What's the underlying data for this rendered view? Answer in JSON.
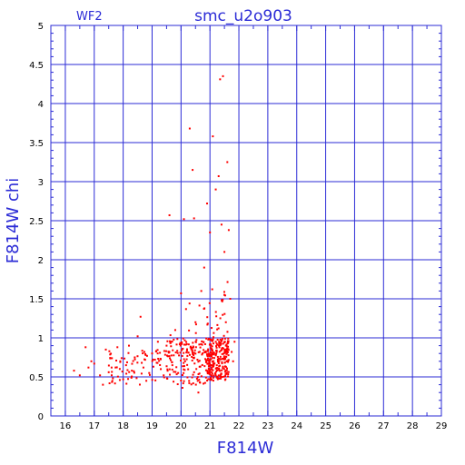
{
  "chart_data": {
    "type": "scatter",
    "title": "smc_u2o903",
    "chip_label": "WF2",
    "xlabel": "F814W",
    "ylabel": "F814W chi",
    "xlim": [
      15.5,
      29
    ],
    "ylim": [
      0,
      5
    ],
    "x_ticks": [
      16,
      17,
      18,
      19,
      20,
      21,
      22,
      23,
      24,
      25,
      26,
      27,
      28,
      29
    ],
    "y_ticks": [
      0,
      0.5,
      1,
      1.5,
      2,
      2.5,
      3,
      3.5,
      4,
      4.5,
      5
    ],
    "grid": true,
    "point_color": "#ff0000",
    "frame_color": "#2b2bd6",
    "series": [
      {
        "points": [
          [
            16.3,
            0.58
          ],
          [
            16.5,
            0.52
          ],
          [
            16.7,
            0.88
          ],
          [
            16.8,
            0.62
          ],
          [
            16.9,
            0.7
          ],
          [
            17.0,
            0.67
          ],
          [
            17.2,
            0.52
          ],
          [
            17.3,
            0.4
          ],
          [
            17.4,
            0.85
          ],
          [
            17.5,
            0.56
          ],
          [
            17.6,
            0.62
          ],
          [
            17.8,
            0.88
          ],
          [
            17.9,
            0.7
          ],
          [
            18.0,
            0.47
          ],
          [
            18.1,
            0.65
          ],
          [
            18.2,
            0.9
          ],
          [
            18.3,
            0.58
          ],
          [
            18.4,
            0.75
          ],
          [
            18.5,
            1.02
          ],
          [
            18.6,
            1.27
          ],
          [
            18.7,
            0.62
          ],
          [
            18.8,
            0.45
          ],
          [
            18.9,
            0.55
          ],
          [
            19.0,
            0.8
          ],
          [
            19.1,
            0.72
          ],
          [
            19.2,
            0.95
          ],
          [
            19.3,
            0.6
          ],
          [
            19.4,
            0.52
          ],
          [
            19.5,
            0.9
          ],
          [
            19.6,
            2.57
          ],
          [
            19.7,
            0.65
          ],
          [
            19.8,
            1.1
          ],
          [
            19.9,
            0.55
          ],
          [
            20.0,
            1.57
          ],
          [
            20.05,
            0.36
          ],
          [
            20.1,
            2.52
          ],
          [
            20.2,
            0.92
          ],
          [
            20.3,
            3.68
          ],
          [
            20.4,
            3.15
          ],
          [
            20.45,
            2.53
          ],
          [
            20.5,
            1.2
          ],
          [
            20.6,
            0.3
          ],
          [
            20.7,
            1.6
          ],
          [
            20.8,
            1.9
          ],
          [
            20.9,
            2.72
          ],
          [
            21.0,
            2.35
          ],
          [
            21.1,
            3.58
          ],
          [
            21.2,
            2.9
          ],
          [
            21.3,
            3.07
          ],
          [
            21.35,
            4.31
          ],
          [
            21.4,
            2.45
          ],
          [
            21.45,
            4.35
          ],
          [
            21.5,
            2.1
          ],
          [
            21.55,
            1.2
          ],
          [
            21.6,
            3.25
          ],
          [
            21.65,
            2.38
          ],
          [
            21.7,
            1.5
          ],
          [
            21.75,
            0.82
          ],
          [
            21.8,
            0.7
          ],
          [
            21.85,
            0.95
          ]
        ]
      }
    ]
  }
}
